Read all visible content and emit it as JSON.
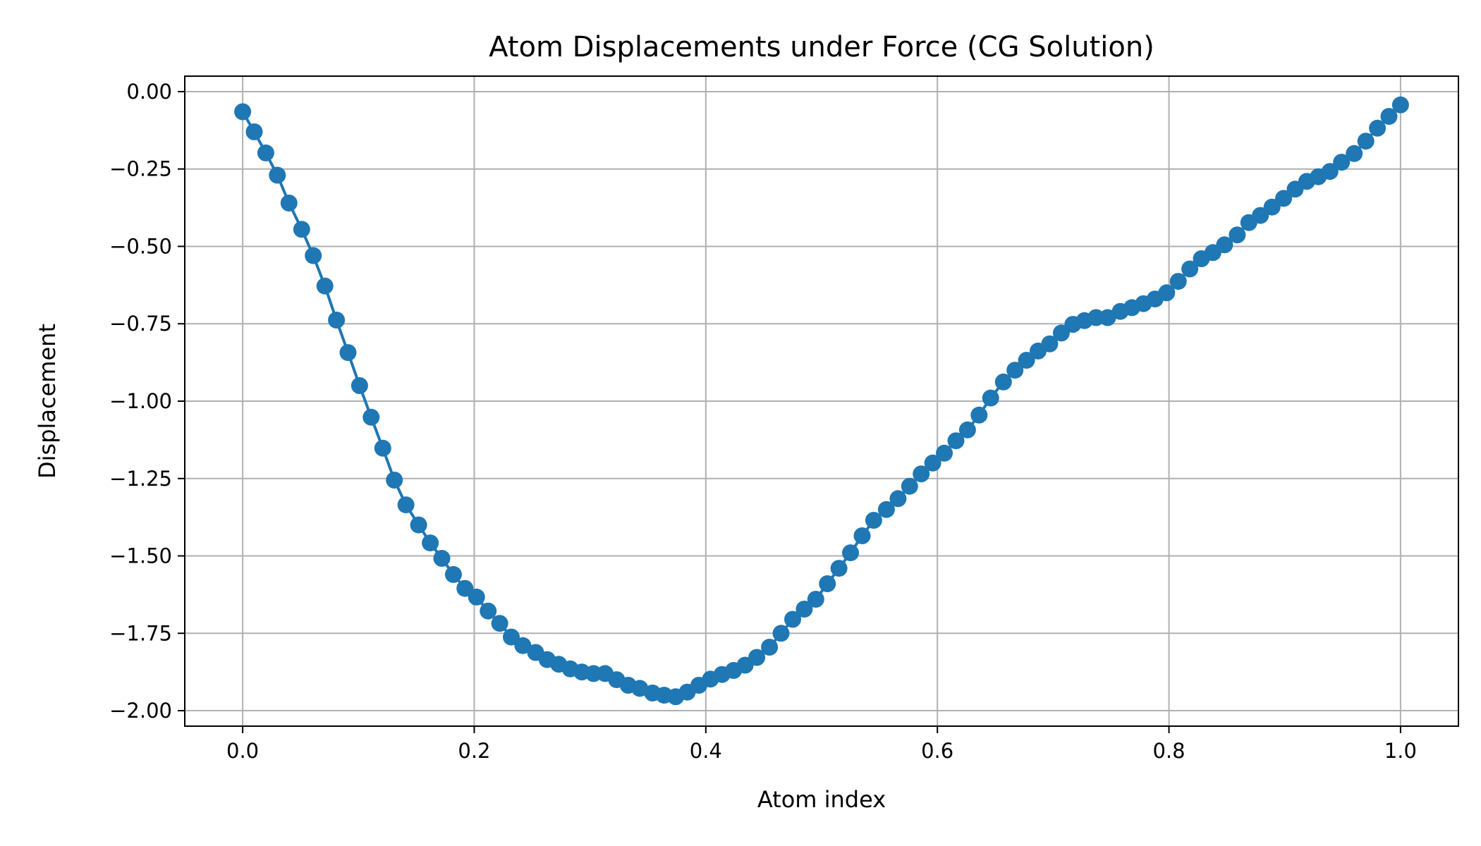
{
  "chart_data": {
    "type": "line",
    "title": "Atom Displacements under Force (CG Solution)",
    "xlabel": "Atom index",
    "ylabel": "Displacement",
    "xlim": [
      -0.05,
      1.05
    ],
    "ylim": [
      -2.05,
      0.05
    ],
    "xticks": [
      0.0,
      0.2,
      0.4,
      0.6,
      0.8,
      1.0
    ],
    "xtick_labels": [
      "0.0",
      "0.2",
      "0.4",
      "0.6",
      "0.8",
      "1.0"
    ],
    "yticks": [
      0.0,
      -0.25,
      -0.5,
      -0.75,
      -1.0,
      -1.25,
      -1.5,
      -1.75,
      -2.0
    ],
    "ytick_labels": [
      "0.00",
      "−0.25",
      "−0.50",
      "−0.75",
      "−1.00",
      "−1.25",
      "−1.50",
      "−1.75",
      "−2.00"
    ],
    "grid": true,
    "legend": "none",
    "series": [
      {
        "color": "#1f77b4",
        "marker": "circle",
        "x": [
          0.0,
          0.01,
          0.02,
          0.03,
          0.04,
          0.051,
          0.061,
          0.071,
          0.081,
          0.091,
          0.101,
          0.111,
          0.121,
          0.131,
          0.141,
          0.152,
          0.162,
          0.172,
          0.182,
          0.192,
          0.202,
          0.212,
          0.222,
          0.232,
          0.242,
          0.253,
          0.263,
          0.273,
          0.283,
          0.293,
          0.303,
          0.313,
          0.323,
          0.333,
          0.343,
          0.354,
          0.364,
          0.374,
          0.384,
          0.394,
          0.404,
          0.414,
          0.424,
          0.434,
          0.444,
          0.455,
          0.465,
          0.475,
          0.485,
          0.495,
          0.505,
          0.515,
          0.525,
          0.535,
          0.545,
          0.556,
          0.566,
          0.576,
          0.586,
          0.596,
          0.606,
          0.616,
          0.626,
          0.636,
          0.646,
          0.657,
          0.667,
          0.677,
          0.687,
          0.697,
          0.707,
          0.717,
          0.727,
          0.737,
          0.747,
          0.758,
          0.768,
          0.778,
          0.788,
          0.798,
          0.808,
          0.818,
          0.828,
          0.838,
          0.848,
          0.859,
          0.869,
          0.879,
          0.889,
          0.899,
          0.909,
          0.919,
          0.929,
          0.939,
          0.949,
          0.96,
          0.97,
          0.98,
          0.99,
          1.0
        ],
        "y": [
          -0.065,
          -0.13,
          -0.198,
          -0.27,
          -0.36,
          -0.445,
          -0.53,
          -0.628,
          -0.738,
          -0.843,
          -0.95,
          -1.052,
          -1.152,
          -1.255,
          -1.335,
          -1.4,
          -1.458,
          -1.508,
          -1.56,
          -1.605,
          -1.633,
          -1.678,
          -1.718,
          -1.762,
          -1.79,
          -1.812,
          -1.835,
          -1.85,
          -1.865,
          -1.875,
          -1.88,
          -1.88,
          -1.9,
          -1.918,
          -1.928,
          -1.943,
          -1.95,
          -1.955,
          -1.94,
          -1.918,
          -1.898,
          -1.883,
          -1.87,
          -1.853,
          -1.828,
          -1.795,
          -1.75,
          -1.705,
          -1.672,
          -1.64,
          -1.59,
          -1.54,
          -1.49,
          -1.435,
          -1.385,
          -1.35,
          -1.315,
          -1.275,
          -1.235,
          -1.2,
          -1.168,
          -1.128,
          -1.093,
          -1.045,
          -0.99,
          -0.938,
          -0.9,
          -0.868,
          -0.838,
          -0.815,
          -0.78,
          -0.752,
          -0.74,
          -0.73,
          -0.73,
          -0.71,
          -0.698,
          -0.685,
          -0.67,
          -0.65,
          -0.613,
          -0.573,
          -0.54,
          -0.52,
          -0.495,
          -0.463,
          -0.423,
          -0.4,
          -0.373,
          -0.345,
          -0.315,
          -0.29,
          -0.275,
          -0.258,
          -0.228,
          -0.2,
          -0.16,
          -0.118,
          -0.08,
          -0.043
        ]
      }
    ]
  }
}
